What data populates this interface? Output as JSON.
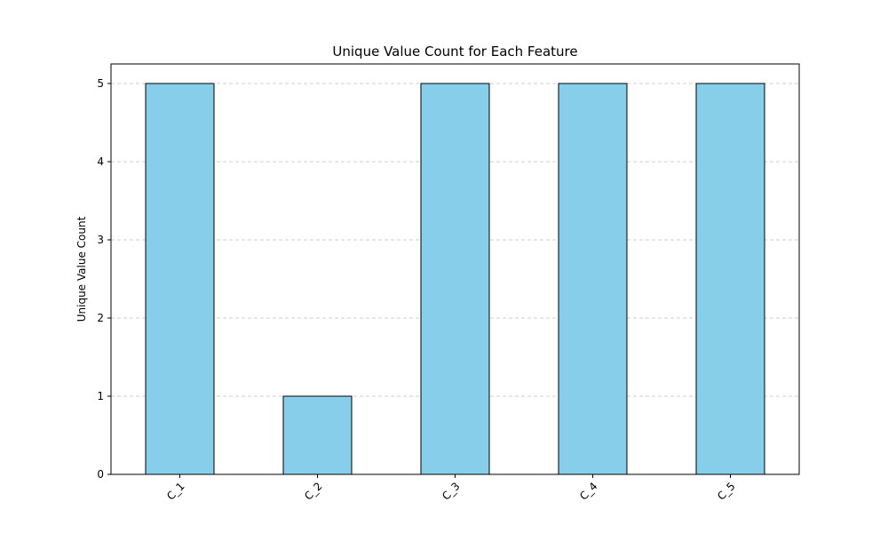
{
  "chart_data": {
    "type": "bar",
    "title": "Unique Value Count for Each Feature",
    "xlabel": "",
    "ylabel": "Unique Value Count",
    "categories": [
      "C_1",
      "C_2",
      "C_3",
      "C_4",
      "C_5"
    ],
    "values": [
      5,
      1,
      5,
      5,
      5
    ],
    "ylim": [
      0,
      5.25
    ],
    "yticks": [
      "0",
      "1",
      "2",
      "3",
      "4",
      "5"
    ],
    "grid": "y-dashed",
    "legend": "none",
    "bar_color": "#87ceeb",
    "edge_color": "#000000",
    "grid_color": "#c0c0c0"
  }
}
